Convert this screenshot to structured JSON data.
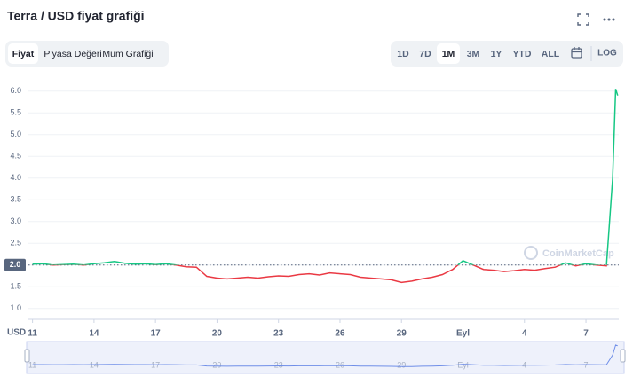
{
  "title": "Terra / USD fiyat grafiği",
  "tabs": [
    "Fiyat",
    "Piyasa Değeri",
    "Mum Grafiği"
  ],
  "ranges": [
    "1D",
    "7D",
    "1M",
    "3M",
    "1Y",
    "YTD",
    "ALL"
  ],
  "log_button": "LOG",
  "chart_data": {
    "type": "line",
    "currency": "USD",
    "watermark": "CoinMarketCap",
    "x": [
      11,
      11.5,
      12,
      12.5,
      13,
      13.5,
      14,
      14.5,
      15,
      15.5,
      16,
      16.5,
      17,
      17.5,
      18,
      18.5,
      19,
      19.5,
      20,
      20.5,
      21,
      21.5,
      22,
      22.5,
      23,
      23.5,
      24,
      24.5,
      25,
      25.5,
      26,
      26.5,
      27,
      27.5,
      28,
      28.5,
      29,
      29.5,
      30,
      30.5,
      31,
      31.5,
      32,
      32.5,
      33,
      33.5,
      34,
      34.5,
      35,
      35.5,
      36,
      36.5,
      37,
      37.5,
      38,
      38.5,
      39,
      39.3,
      39.45,
      39.55
    ],
    "series": [
      {
        "name": "Fiyat",
        "color": "#16c784",
        "down_color": "#ea3943",
        "values": [
          2.02,
          2.03,
          2.0,
          2.01,
          2.02,
          2.0,
          2.03,
          2.05,
          2.08,
          2.04,
          2.02,
          2.03,
          2.01,
          2.03,
          2.0,
          1.96,
          1.95,
          1.74,
          1.7,
          1.68,
          1.7,
          1.72,
          1.7,
          1.73,
          1.75,
          1.74,
          1.78,
          1.8,
          1.77,
          1.82,
          1.8,
          1.78,
          1.72,
          1.7,
          1.68,
          1.66,
          1.6,
          1.63,
          1.68,
          1.72,
          1.78,
          1.9,
          2.1,
          2.0,
          1.9,
          1.88,
          1.85,
          1.87,
          1.9,
          1.88,
          1.92,
          1.95,
          2.05,
          1.98,
          2.03,
          2.0,
          1.98,
          4.0,
          6.05,
          5.9
        ]
      }
    ],
    "baseline": {
      "value": 2.0,
      "label": "2.0"
    },
    "xlim": [
      10.8,
      39.6
    ],
    "xticks": [
      11,
      14,
      17,
      20,
      23,
      26,
      29,
      {
        "value": 32,
        "label": "Eyl"
      },
      {
        "value": 35,
        "label": "4"
      },
      {
        "value": 38,
        "label": "7"
      }
    ],
    "ylim": [
      0.75,
      6.22
    ],
    "yticks": [
      {
        "value": 1,
        "label": "1.0"
      },
      {
        "value": 1.5,
        "label": "1.5"
      },
      {
        "value": 2,
        "label": "2.0"
      },
      {
        "value": 2.5,
        "label": "2.5"
      },
      {
        "value": 3,
        "label": "3.0"
      },
      {
        "value": 3.5,
        "label": "3.5"
      },
      {
        "value": 4,
        "label": "4.0"
      },
      {
        "value": 4.5,
        "label": "4.5"
      },
      {
        "value": 5,
        "label": "5.0"
      },
      {
        "value": 5.5,
        "label": "5.5"
      },
      {
        "value": 6,
        "label": "6.0"
      }
    ],
    "grid": true
  }
}
